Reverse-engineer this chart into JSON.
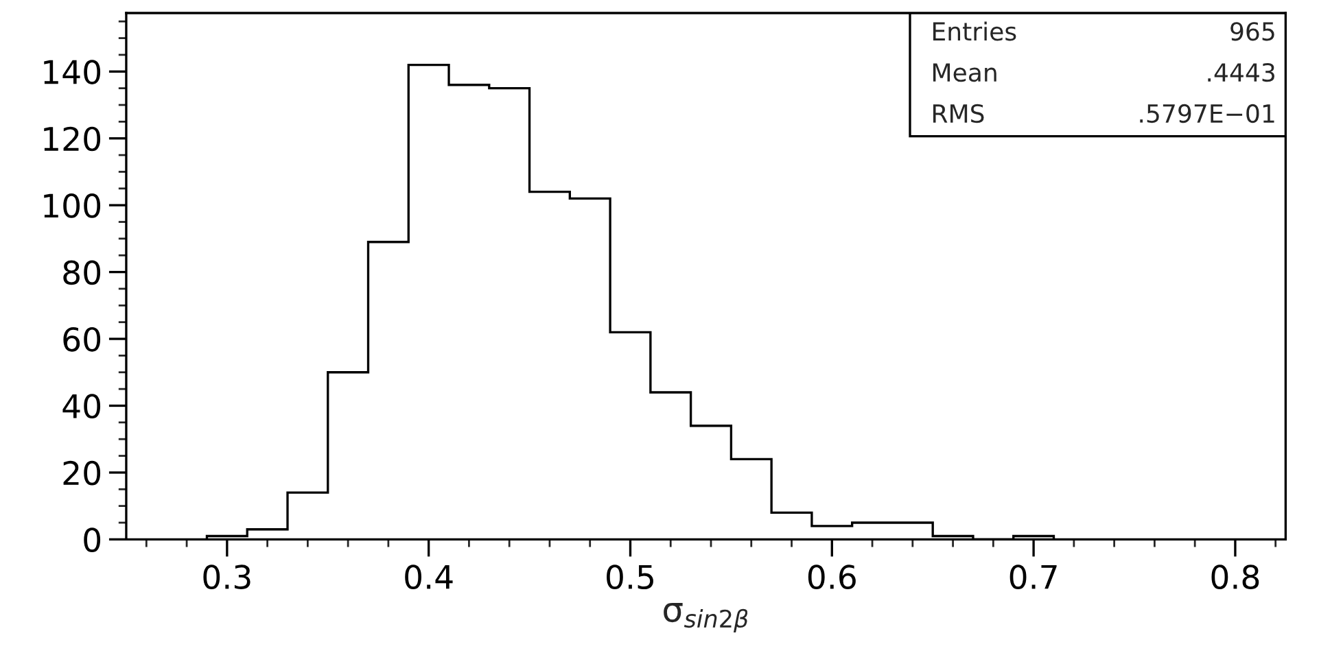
{
  "chart_data": {
    "type": "histogram",
    "bins": [
      0.29,
      0.31,
      0.33,
      0.35,
      0.37,
      0.39,
      0.41,
      0.43,
      0.45,
      0.47,
      0.49,
      0.51,
      0.53,
      0.55,
      0.57,
      0.59,
      0.61,
      0.63,
      0.65,
      0.67,
      0.69,
      0.71
    ],
    "values": [
      1,
      3,
      14,
      50,
      89,
      142,
      136,
      135,
      104,
      102,
      62,
      44,
      34,
      24,
      8,
      4,
      5,
      5,
      1,
      0,
      1
    ],
    "color": "#000000",
    "xlim": [
      0.25,
      0.825
    ],
    "ylim": [
      0,
      157.5
    ],
    "xticks": [
      0.3,
      0.4,
      0.5,
      0.6,
      0.7,
      0.8
    ],
    "yticks": [
      0,
      20,
      40,
      60,
      80,
      100,
      120,
      140
    ],
    "xlabel": "σ$_{sin2β}$",
    "grid": false,
    "annotations": [
      "Entries",
      "965",
      "Mean",
      ".4443",
      "RMS",
      ".5797E−01"
    ]
  }
}
